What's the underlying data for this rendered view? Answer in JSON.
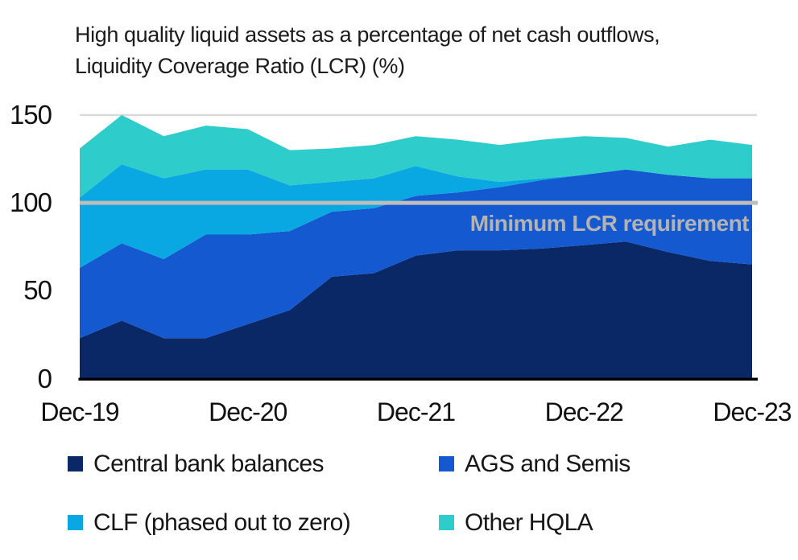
{
  "title": "High quality liquid assets as a percentage of net cash outflows, Liquidity Coverage Ratio (LCR) (%)",
  "reference_line": {
    "label": "Minimum LCR requirement",
    "value": 100,
    "line_color": "#bdbdbd",
    "label_color": "#b3b3b3"
  },
  "colors": {
    "gridline_top": "#d9d9d9",
    "axis": "#000000",
    "background": "#ffffff",
    "text": "#1b1b1b"
  },
  "chart_data": {
    "type": "area",
    "stacked": true,
    "title": "High quality liquid assets as a percentage of net cash outflows, Liquidity Coverage Ratio (LCR) (%)",
    "categories": [
      "Dec-19",
      "Mar-20",
      "Jun-20",
      "Sep-20",
      "Dec-20",
      "Mar-21",
      "Jun-21",
      "Sep-21",
      "Dec-21",
      "Mar-22",
      "Jun-22",
      "Sep-22",
      "Dec-22",
      "Mar-23",
      "Jun-23",
      "Sep-23",
      "Dec-23"
    ],
    "x_tick_labels": [
      "Dec-19",
      "Dec-20",
      "Dec-21",
      "Dec-22",
      "Dec-23"
    ],
    "y_ticks": [
      0,
      50,
      100,
      150
    ],
    "ylim": [
      0,
      150
    ],
    "grid": "top-line-only",
    "legend_position": "bottom",
    "series": [
      {
        "name": "Central bank balances",
        "color": "#0a2766",
        "values": [
          23,
          33,
          23,
          23,
          31,
          39,
          58,
          60,
          70,
          73,
          73,
          74,
          76,
          78,
          72,
          67,
          65
        ]
      },
      {
        "name": "AGS and Semis",
        "color": "#1559d0",
        "values": [
          40,
          44,
          45,
          59,
          51,
          45,
          37,
          37,
          34,
          33,
          36,
          39,
          40,
          41,
          44,
          47,
          49
        ]
      },
      {
        "name": "CLF (phased out to zero)",
        "color": "#0aa8e2",
        "values": [
          40,
          45,
          46,
          37,
          37,
          26,
          17,
          17,
          17,
          9,
          3,
          1,
          0,
          0,
          0,
          0,
          0
        ]
      },
      {
        "name": "Other HQLA",
        "color": "#2fcccc",
        "values": [
          28,
          28,
          24,
          25,
          23,
          20,
          19,
          19,
          17,
          21,
          21,
          22,
          22,
          18,
          16,
          22,
          19
        ]
      }
    ],
    "annotations": [
      {
        "text": "Minimum LCR requirement",
        "y": 100,
        "style": "horizontal-reference-line"
      }
    ]
  }
}
